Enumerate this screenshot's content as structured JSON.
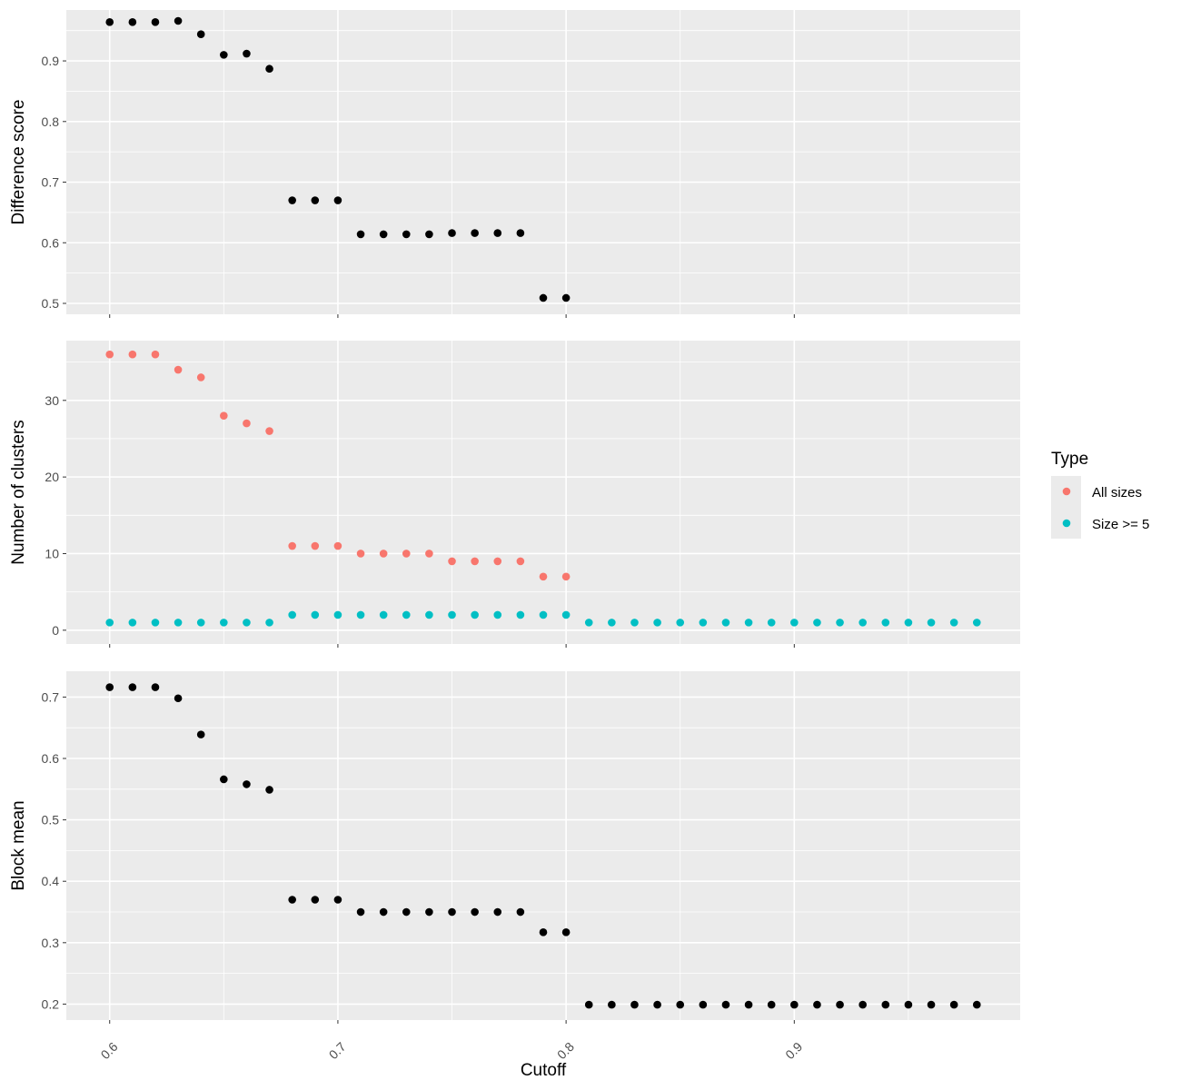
{
  "xlabel": "Cutoff",
  "legend": {
    "title": "Type",
    "entries": [
      {
        "label": "All sizes",
        "color": "#F8766D"
      },
      {
        "label": "Size >= 5",
        "color": "#00BFC4"
      }
    ]
  },
  "chart_data": [
    {
      "type": "scatter",
      "ylabel": "Difference score",
      "xlim": [
        0.581,
        0.999
      ],
      "ylim": [
        0.482,
        0.984
      ],
      "x_ticks": [
        0.6,
        0.7,
        0.8,
        0.9
      ],
      "y_ticks": [
        0.5,
        0.6,
        0.7,
        0.8,
        0.9
      ],
      "grid": true,
      "series": [
        {
          "color": "#000000",
          "x": [
            0.6,
            0.61,
            0.62,
            0.63,
            0.64,
            0.65,
            0.66,
            0.67,
            0.68,
            0.69,
            0.7,
            0.71,
            0.72,
            0.73,
            0.74,
            0.75,
            0.76,
            0.77,
            0.78,
            0.79,
            0.8
          ],
          "y": [
            0.964,
            0.964,
            0.964,
            0.966,
            0.944,
            0.91,
            0.912,
            0.887,
            0.67,
            0.67,
            0.67,
            0.614,
            0.614,
            0.614,
            0.614,
            0.616,
            0.616,
            0.616,
            0.616,
            0.509,
            0.509
          ]
        }
      ]
    },
    {
      "type": "scatter",
      "ylabel": "Number of clusters",
      "xlim": [
        0.581,
        0.999
      ],
      "ylim": [
        -1.8,
        37.8
      ],
      "x_ticks": [
        0.6,
        0.7,
        0.8,
        0.9
      ],
      "y_ticks": [
        0,
        10,
        20,
        30
      ],
      "grid": true,
      "legend_placement": "right",
      "series": [
        {
          "name": "All sizes",
          "color": "#F8766D",
          "x": [
            0.6,
            0.61,
            0.62,
            0.63,
            0.64,
            0.65,
            0.66,
            0.67,
            0.68,
            0.69,
            0.7,
            0.71,
            0.72,
            0.73,
            0.74,
            0.75,
            0.76,
            0.77,
            0.78,
            0.79,
            0.8
          ],
          "y": [
            36,
            36,
            36,
            34,
            33,
            28,
            27,
            26,
            11,
            11,
            11,
            10,
            10,
            10,
            10,
            9,
            9,
            9,
            9,
            7,
            7
          ]
        },
        {
          "name": "Size >= 5",
          "color": "#00BFC4",
          "x": [
            0.6,
            0.61,
            0.62,
            0.63,
            0.64,
            0.65,
            0.66,
            0.67,
            0.68,
            0.69,
            0.7,
            0.71,
            0.72,
            0.73,
            0.74,
            0.75,
            0.76,
            0.77,
            0.78,
            0.79,
            0.8,
            0.81,
            0.82,
            0.83,
            0.84,
            0.85,
            0.86,
            0.87,
            0.88,
            0.89,
            0.9,
            0.91,
            0.92,
            0.93,
            0.94,
            0.95,
            0.96,
            0.97,
            0.98
          ],
          "y": [
            1,
            1,
            1,
            1,
            1,
            1,
            1,
            1,
            2,
            2,
            2,
            2,
            2,
            2,
            2,
            2,
            2,
            2,
            2,
            2,
            2,
            1,
            1,
            1,
            1,
            1,
            1,
            1,
            1,
            1,
            1,
            1,
            1,
            1,
            1,
            1,
            1,
            1,
            1
          ]
        }
      ]
    },
    {
      "type": "scatter",
      "ylabel": "Block mean",
      "xlim": [
        0.581,
        0.999
      ],
      "ylim": [
        0.174,
        0.742
      ],
      "x_ticks": [
        0.6,
        0.7,
        0.8,
        0.9
      ],
      "y_ticks": [
        0.2,
        0.3,
        0.4,
        0.5,
        0.6,
        0.7
      ],
      "grid": true,
      "series": [
        {
          "color": "#000000",
          "x": [
            0.6,
            0.61,
            0.62,
            0.63,
            0.64,
            0.65,
            0.66,
            0.67,
            0.68,
            0.69,
            0.7,
            0.71,
            0.72,
            0.73,
            0.74,
            0.75,
            0.76,
            0.77,
            0.78,
            0.79,
            0.8,
            0.81,
            0.82,
            0.83,
            0.84,
            0.85,
            0.86,
            0.87,
            0.88,
            0.89,
            0.9,
            0.91,
            0.92,
            0.93,
            0.94,
            0.95,
            0.96,
            0.97,
            0.98
          ],
          "y": [
            0.716,
            0.716,
            0.716,
            0.698,
            0.639,
            0.566,
            0.558,
            0.549,
            0.37,
            0.37,
            0.37,
            0.35,
            0.35,
            0.35,
            0.35,
            0.35,
            0.35,
            0.35,
            0.35,
            0.317,
            0.317,
            0.199,
            0.199,
            0.199,
            0.199,
            0.199,
            0.199,
            0.199,
            0.199,
            0.199,
            0.199,
            0.199,
            0.199,
            0.199,
            0.199,
            0.199,
            0.199,
            0.199,
            0.199
          ]
        }
      ]
    }
  ]
}
